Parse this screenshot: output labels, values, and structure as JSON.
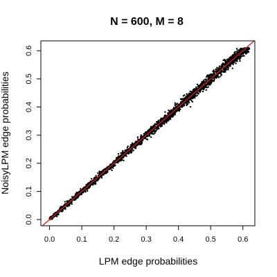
{
  "chart_data": {
    "type": "scatter",
    "title": "N = 600, M = 8",
    "xlabel": "LPM edge probabilities",
    "ylabel": "NoisyLPM edge probabilities",
    "xlim": [
      -0.027,
      0.637
    ],
    "ylim": [
      -0.022,
      0.635
    ],
    "xticks": [
      0.0,
      0.1,
      0.2,
      0.3,
      0.4,
      0.5,
      0.6
    ],
    "xtick_labels": [
      "0.0",
      "0.1",
      "0.2",
      "0.3",
      "0.4",
      "0.5",
      "0.6"
    ],
    "yticks": [
      0.0,
      0.1,
      0.2,
      0.3,
      0.4,
      0.5,
      0.6
    ],
    "ytick_labels": [
      "0.0",
      "0.1",
      "0.2",
      "0.3",
      "0.4",
      "0.5",
      "0.6"
    ],
    "point_color": "#000000",
    "x_range_of_points": [
      0.0,
      0.62
    ],
    "y_range_of_points": [
      0.0,
      0.61
    ],
    "reference_line": {
      "type": "identity",
      "slope": 1,
      "intercept": 0,
      "color": "#cc2222"
    },
    "grid": false,
    "legend": "none"
  }
}
